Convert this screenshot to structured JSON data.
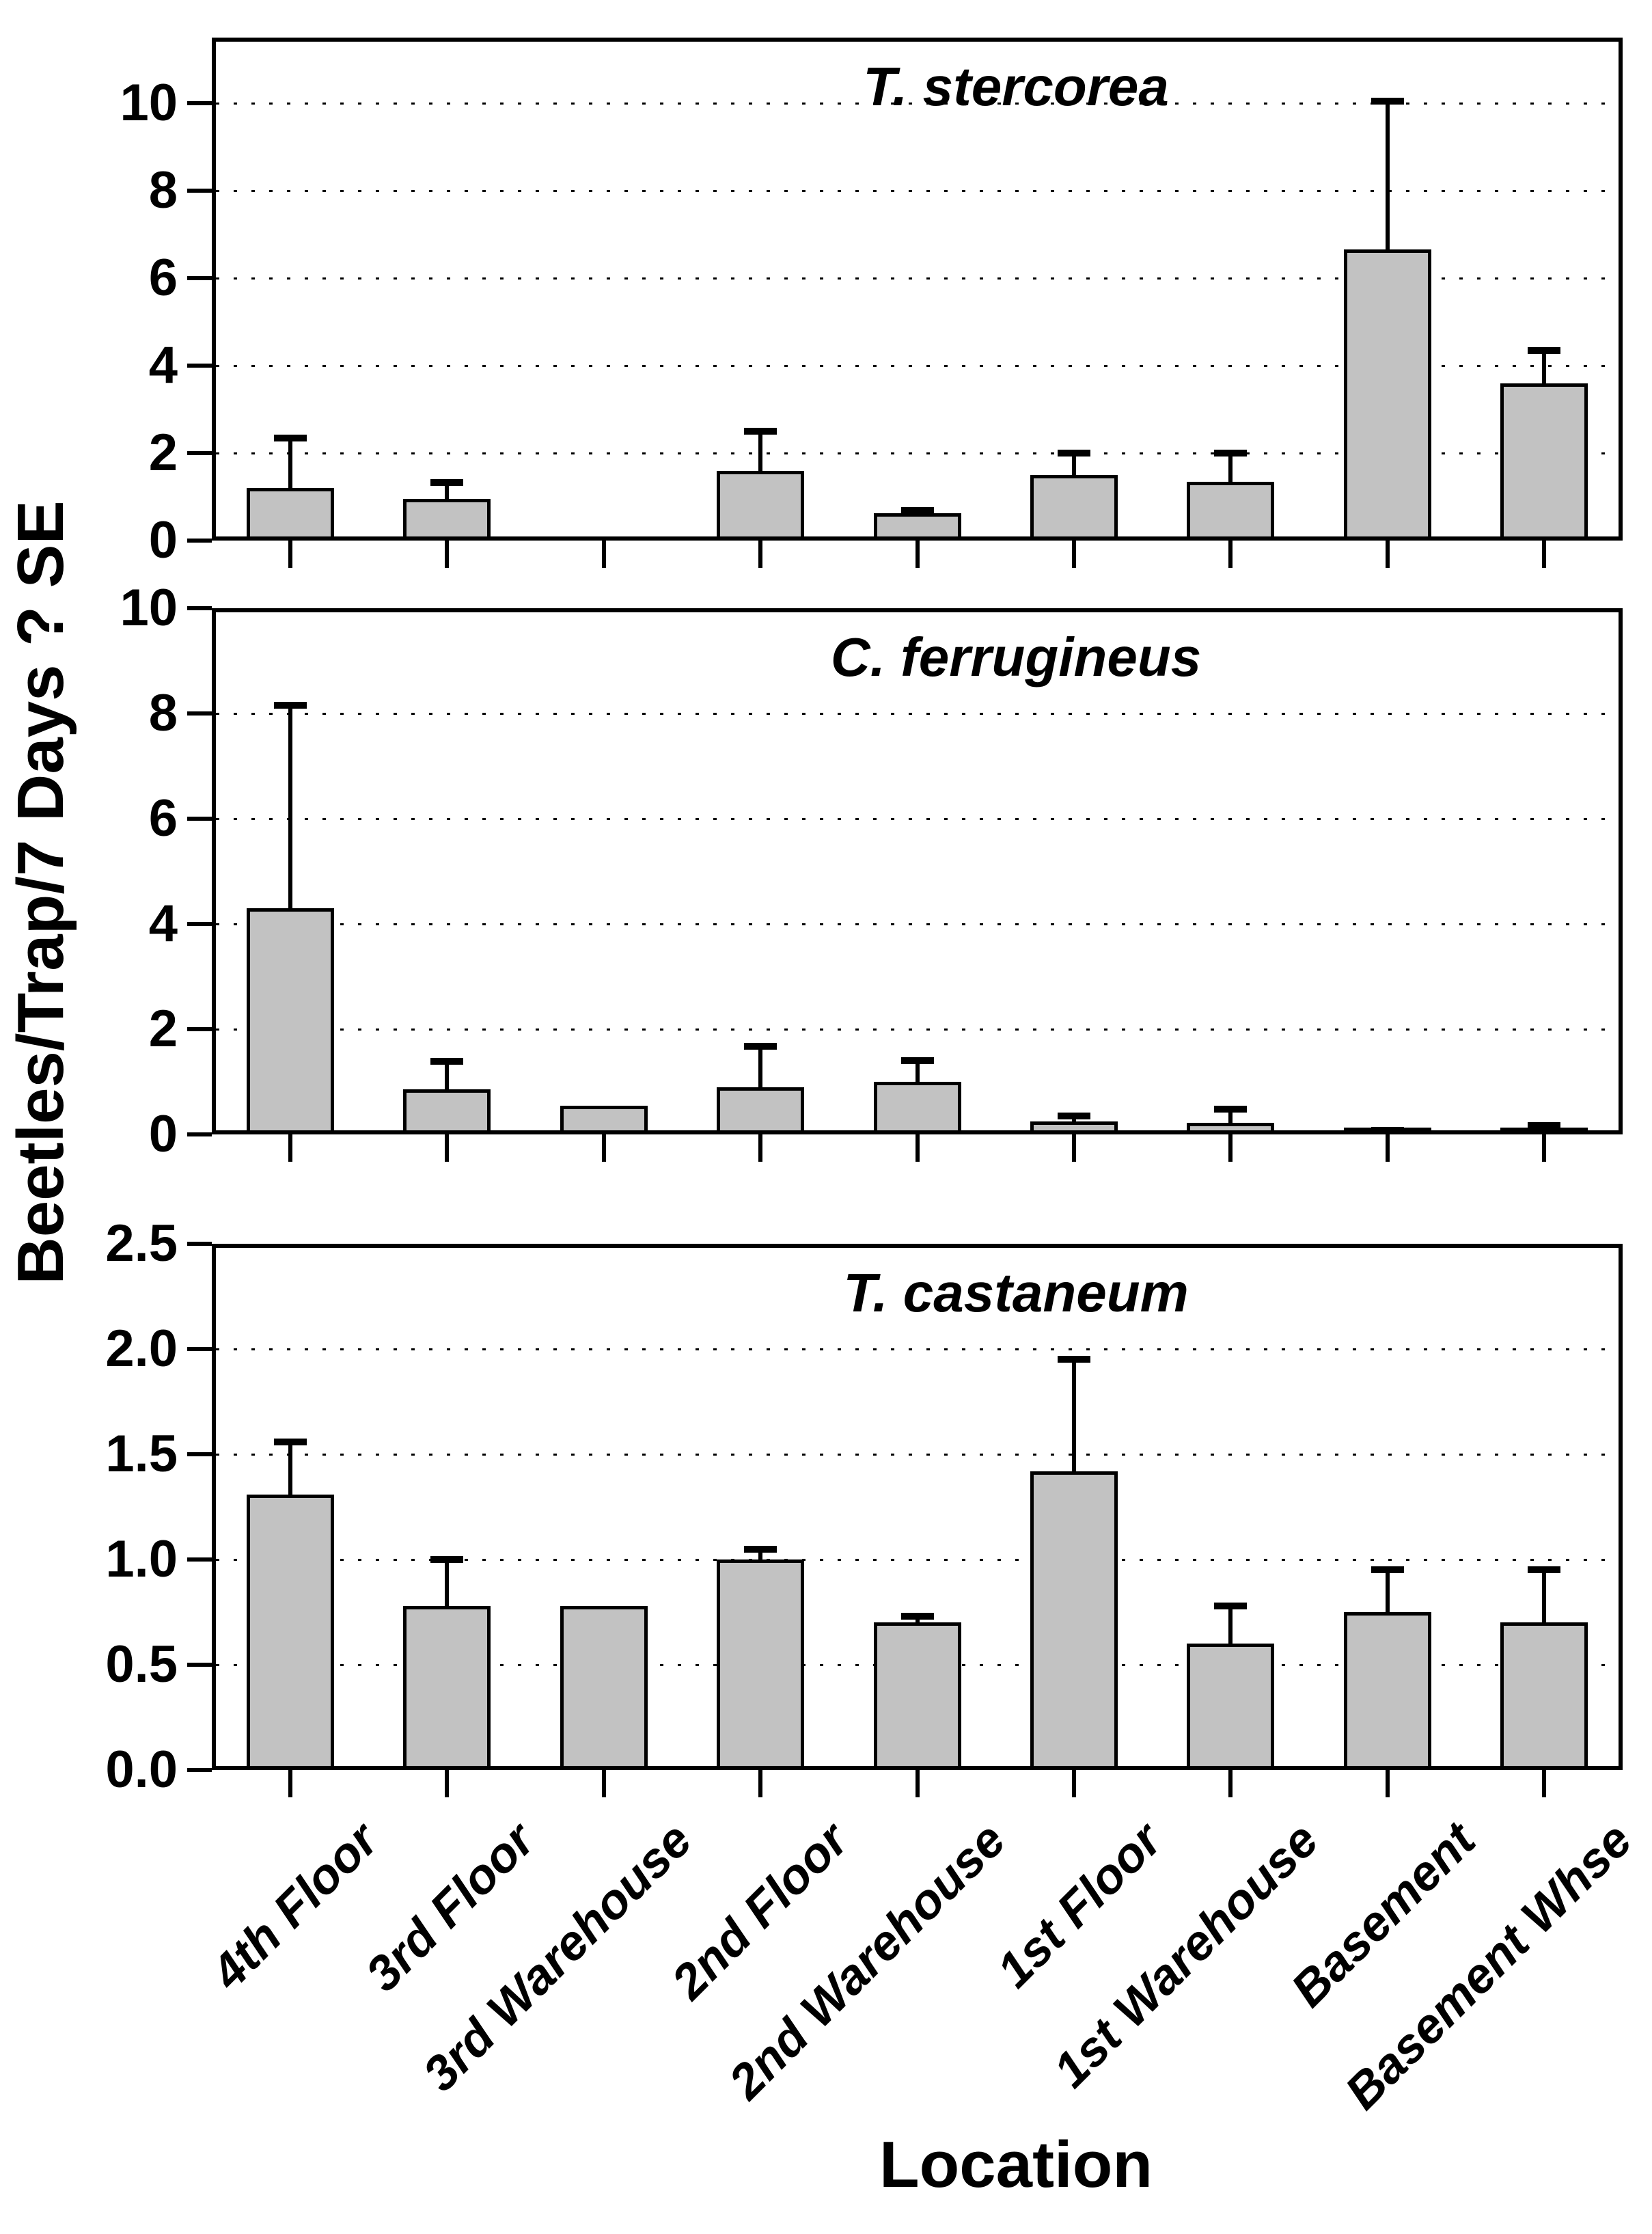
{
  "y_axis_label": "Beetles/Trap/7 Days ? SE",
  "x_axis_label": "Location",
  "style": {
    "bar_fill": "#c2c2c2",
    "line_color": "#000000",
    "background": "#ffffff"
  },
  "chart_data": [
    {
      "type": "bar",
      "title": "T. stercorea",
      "categories": [
        "4th Floor",
        "3rd Floor",
        "3rd Warehouse",
        "2nd Floor",
        "2nd Warehouse",
        "1st Floor",
        "1st Warehouse",
        "Basement",
        "Basement Whse"
      ],
      "values": [
        1.2,
        0.95,
        0,
        1.6,
        0.62,
        1.5,
        1.35,
        6.65,
        3.6
      ],
      "se_upper": [
        1.15,
        0.38,
        0,
        0.9,
        0.06,
        0.5,
        0.65,
        3.4,
        0.75
      ],
      "ylim": [
        0,
        11.5
      ],
      "yticks": [
        0,
        2,
        4,
        6,
        8,
        10
      ],
      "ytick_labels": [
        "0",
        "2",
        "4",
        "6",
        "8",
        "10"
      ],
      "gridlines": [
        2,
        4,
        6,
        8,
        10
      ],
      "grid": true,
      "legend": false,
      "xlabel": "",
      "ylabel": "Beetles/Trap/7 Days ? SE"
    },
    {
      "type": "bar",
      "title": "C. ferrugineus",
      "categories": [
        "4th Floor",
        "3rd Floor",
        "3rd Warehouse",
        "2nd Floor",
        "2nd Warehouse",
        "1st Floor",
        "1st Warehouse",
        "Basement",
        "Basement Whse"
      ],
      "values": [
        4.3,
        0.86,
        0.54,
        0.9,
        1.0,
        0.25,
        0.22,
        0.05,
        0.1
      ],
      "se_upper": [
        3.85,
        0.53,
        0,
        0.77,
        0.4,
        0.1,
        0.26,
        0.03,
        0.07
      ],
      "ylim": [
        0,
        10
      ],
      "yticks": [
        0,
        2,
        4,
        6,
        8,
        10
      ],
      "ytick_labels": [
        "0",
        "2",
        "4",
        "6",
        "8",
        "10"
      ],
      "gridlines": [
        2,
        4,
        6,
        8
      ],
      "grid": true,
      "legend": false,
      "xlabel": "",
      "ylabel": "Beetles/Trap/7 Days ? SE"
    },
    {
      "type": "bar",
      "title": "T. castaneum",
      "categories": [
        "4th Floor",
        "3rd Floor",
        "3rd Warehouse",
        "2nd Floor",
        "2nd Warehouse",
        "1st Floor",
        "1st Warehouse",
        "Basement",
        "Basement Whse"
      ],
      "values": [
        1.31,
        0.78,
        0.78,
        1.0,
        0.7,
        1.42,
        0.6,
        0.75,
        0.7
      ],
      "se_upper": [
        0.25,
        0.22,
        0,
        0.05,
        0.03,
        0.53,
        0.18,
        0.2,
        0.25
      ],
      "ylim": [
        0,
        2.5
      ],
      "yticks": [
        0,
        0.5,
        1.0,
        1.5,
        2.0,
        2.5
      ],
      "ytick_labels": [
        "0.0",
        "0.5",
        "1.0",
        "1.5",
        "2.0",
        "2.5"
      ],
      "gridlines": [
        0.5,
        1.0,
        1.5,
        2.0
      ],
      "grid": true,
      "legend": false,
      "xlabel": "Location",
      "ylabel": "Beetles/Trap/7 Days ? SE"
    }
  ]
}
